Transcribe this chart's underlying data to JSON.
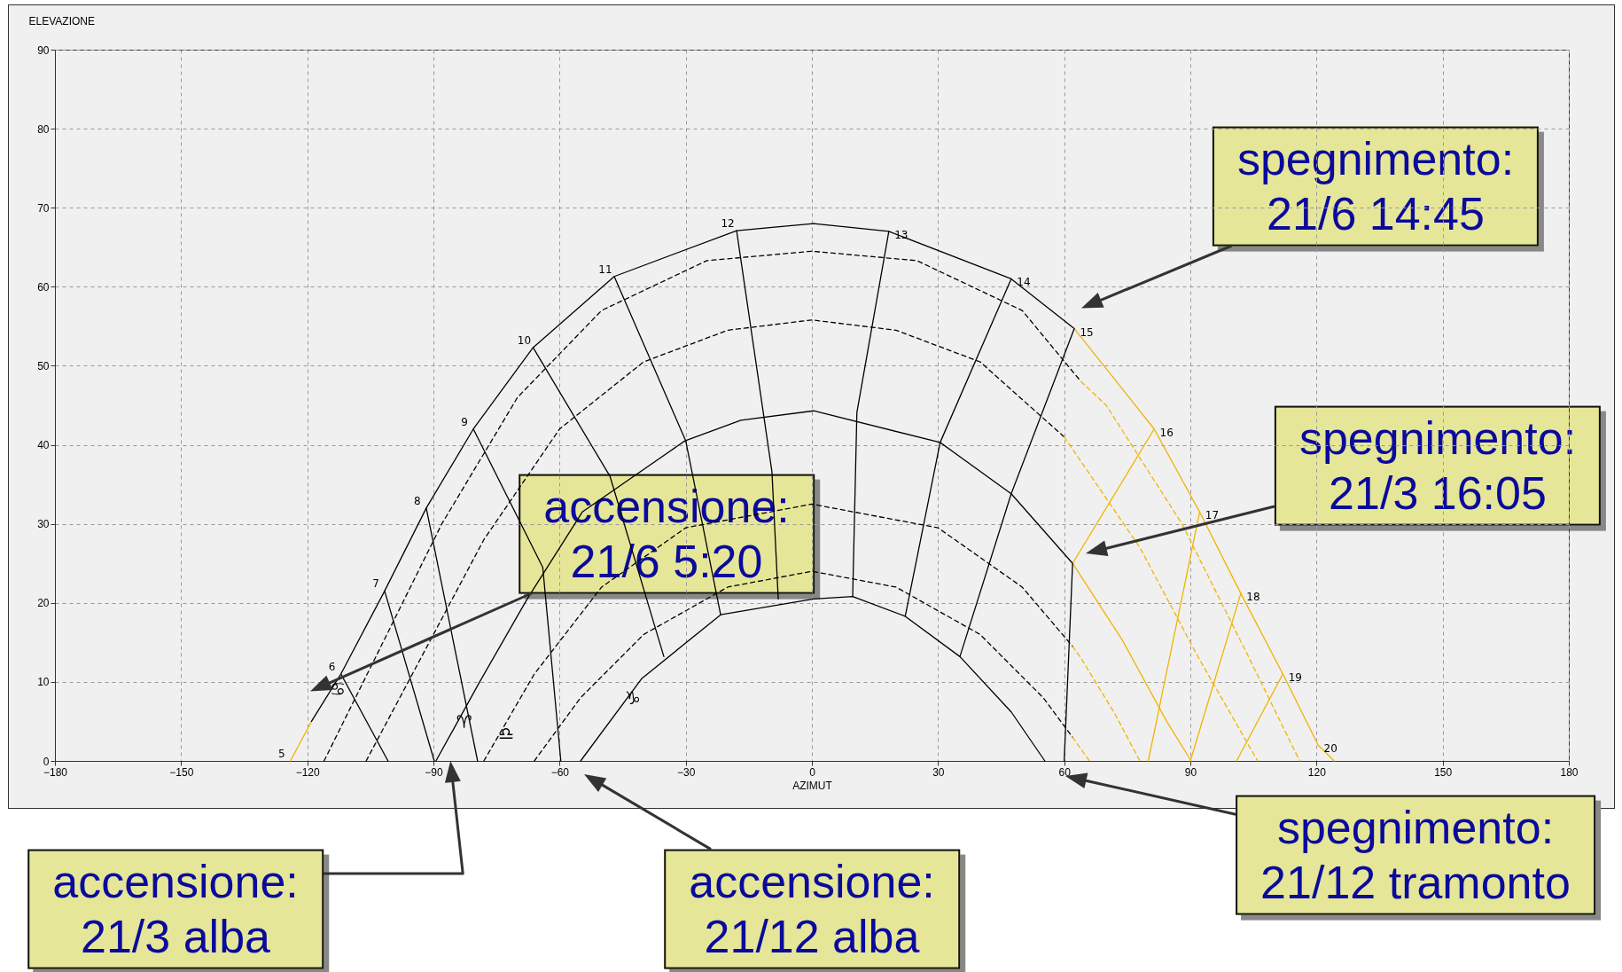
{
  "chart_data": {
    "type": "line",
    "xlabel": "AZIMUT",
    "ylabel": "ELEVAZIONE",
    "xlim": [
      -180,
      180
    ],
    "ylim": [
      0,
      90
    ],
    "xticks": [
      -180,
      -150,
      -120,
      -90,
      -60,
      -30,
      0,
      30,
      60,
      90,
      120,
      150,
      180
    ],
    "yticks": [
      0,
      10,
      20,
      30,
      40,
      50,
      60,
      70,
      80,
      90
    ],
    "grid": true,
    "series": [
      {
        "color": "#f0b400",
        "line_style": "solid",
        "x": [
          -124,
          -119
        ],
        "values": [
          0,
          5
        ]
      },
      {
        "color": "#000000",
        "line_style": "solid",
        "x": [
          -119,
          -112,
          -101.6,
          -91.7,
          -80.5,
          -66.3,
          -47,
          -17.9,
          0.4,
          18.3,
          47.4,
          62.4
        ],
        "values": [
          5,
          11,
          21.5,
          32,
          42,
          52.3,
          61.3,
          67.1,
          68,
          67,
          61,
          54.7
        ]
      },
      {
        "color": "#f0b400",
        "line_style": "solid",
        "x": [
          62.4,
          81.4,
          92.2,
          102,
          112,
          120.4,
          124.2
        ],
        "values": [
          54.7,
          42,
          31.5,
          21.2,
          11,
          2,
          0
        ]
      },
      {
        "color": "#000000",
        "line_style": "solid",
        "x": [
          -89.4,
          -79,
          -67.7,
          -54.6,
          -30.2,
          -16.9,
          0.4,
          30.5,
          47.4,
          62
        ],
        "values": [
          0,
          10,
          20.5,
          31.5,
          40.5,
          43.1,
          44.3,
          40.3,
          33.8,
          25
        ]
      },
      {
        "color": "#f0b400",
        "line_style": "solid",
        "x": [
          62,
          73.8,
          84.5,
          90.2
        ],
        "values": [
          25,
          15.3,
          4.9,
          0
        ]
      },
      {
        "color": "#000000",
        "line_style": "solid",
        "x": [
          -55,
          -40.5,
          -21.7,
          0.4,
          9.7,
          22.2,
          35.2,
          47.4,
          55.4
        ],
        "values": [
          0,
          10.4,
          18.5,
          20.5,
          20.8,
          18.3,
          13.2,
          6.2,
          0
        ]
      },
      {
        "color": "#000000",
        "line_style": "dashed",
        "x": [
          -116,
          -102,
          -88,
          -70,
          -50,
          -25,
          0,
          25,
          50,
          64
        ],
        "values": [
          0,
          15,
          30,
          46,
          57,
          63.3,
          64.5,
          63.3,
          57,
          48
        ]
      },
      {
        "color": "#f0b400",
        "line_style": "dashed",
        "x": [
          64,
          70,
          88,
          104,
          116
        ],
        "values": [
          48,
          45,
          30,
          13,
          0
        ]
      },
      {
        "color": "#000000",
        "line_style": "dashed",
        "x": [
          -106,
          -92,
          -78,
          -60,
          -40,
          -20,
          0,
          20,
          40,
          60
        ],
        "values": [
          0,
          14,
          28,
          42,
          50.5,
          54.5,
          55.8,
          54.5,
          50.5,
          41
        ]
      },
      {
        "color": "#f0b400",
        "line_style": "dashed",
        "x": [
          60,
          78,
          92,
          106
        ],
        "values": [
          41,
          27,
          13,
          0
        ]
      },
      {
        "color": "#000000",
        "line_style": "dashed",
        "x": [
          -78,
          -66,
          -50,
          -30,
          0,
          30,
          50,
          62
        ],
        "values": [
          0,
          11,
          22,
          29.5,
          32.5,
          29.5,
          22,
          14.5
        ]
      },
      {
        "color": "#f0b400",
        "line_style": "dashed",
        "x": [
          62,
          64,
          72,
          78
        ],
        "values": [
          14.5,
          13,
          6,
          0
        ]
      },
      {
        "color": "#000000",
        "line_style": "dashed",
        "x": [
          -66,
          -55,
          -40,
          -20,
          0,
          20,
          40,
          55,
          62
        ],
        "values": [
          0,
          8,
          16,
          22,
          24,
          22,
          16,
          8,
          3
        ]
      },
      {
        "color": "#f0b400",
        "line_style": "dashed",
        "x": [
          62,
          66
        ],
        "values": [
          3,
          0
        ]
      },
      {
        "color": "#000000",
        "line_style": "solid",
        "x": [
          -112,
          -100.8
        ],
        "values": [
          11,
          0
        ]
      },
      {
        "color": "#000000",
        "line_style": "solid",
        "x": [
          -101.6,
          -89.8
        ],
        "values": [
          21.5,
          0
        ]
      },
      {
        "color": "#000000",
        "line_style": "solid",
        "x": [
          -91.7,
          -79.5
        ],
        "values": [
          32,
          0
        ]
      },
      {
        "color": "#000000",
        "line_style": "solid",
        "x": [
          -80.5,
          -64,
          -59.7
        ],
        "values": [
          42,
          24.5,
          0
        ]
      },
      {
        "color": "#000000",
        "line_style": "solid",
        "x": [
          -66.3,
          -48,
          -35.2
        ],
        "values": [
          52.3,
          36,
          13.2
        ]
      },
      {
        "color": "#000000",
        "line_style": "solid",
        "x": [
          -47,
          -30,
          -21.7
        ],
        "values": [
          61.3,
          40.5,
          18.5
        ]
      },
      {
        "color": "#000000",
        "line_style": "solid",
        "x": [
          -17.9,
          -9.5,
          -8
        ],
        "values": [
          67.1,
          36.6,
          20.5
        ]
      },
      {
        "color": "#000000",
        "line_style": "solid",
        "x": [
          18.3,
          10.7,
          9.7
        ],
        "values": [
          67,
          44.1,
          20.8
        ]
      },
      {
        "color": "#000000",
        "line_style": "solid",
        "x": [
          47.4,
          30.5,
          22.2
        ],
        "values": [
          61,
          40.3,
          18.3
        ]
      },
      {
        "color": "#000000",
        "line_style": "solid",
        "x": [
          62.4,
          47.4,
          35.2
        ],
        "values": [
          54.7,
          33.8,
          13.2
        ]
      },
      {
        "color": "#f0b400",
        "line_style": "solid",
        "x": [
          81.4,
          62
        ],
        "values": [
          42,
          25
        ]
      },
      {
        "color": "#000000",
        "line_style": "solid",
        "x": [
          62,
          60
        ],
        "values": [
          25,
          0
        ]
      },
      {
        "color": "#f0b400",
        "line_style": "solid",
        "x": [
          92.2,
          80
        ],
        "values": [
          31.5,
          0
        ]
      },
      {
        "color": "#f0b400",
        "line_style": "solid",
        "x": [
          102,
          90
        ],
        "values": [
          21.2,
          0
        ]
      },
      {
        "color": "#f0b400",
        "line_style": "solid",
        "x": [
          112,
          101
        ],
        "values": [
          11,
          0
        ]
      }
    ],
    "annotations": [
      {
        "text": "5",
        "x": -124,
        "y": 0
      },
      {
        "text": "6",
        "x": -112,
        "y": 11
      },
      {
        "text": "7",
        "x": -101.6,
        "y": 21.5
      },
      {
        "text": "8",
        "x": -91.7,
        "y": 32
      },
      {
        "text": "9",
        "x": -80.5,
        "y": 42
      },
      {
        "text": "10",
        "x": -66.3,
        "y": 52.3
      },
      {
        "text": "11",
        "x": -47,
        "y": 61.3
      },
      {
        "text": "12",
        "x": -17.9,
        "y": 67.1
      },
      {
        "text": "13",
        "x": 18.3,
        "y": 67
      },
      {
        "text": "14",
        "x": 47.4,
        "y": 61
      },
      {
        "text": "15",
        "x": 62.4,
        "y": 54.7
      },
      {
        "text": "16",
        "x": 81.4,
        "y": 42
      },
      {
        "text": "17",
        "x": 92.2,
        "y": 31.5
      },
      {
        "text": "18",
        "x": 102,
        "y": 21.2
      },
      {
        "text": "19",
        "x": 112,
        "y": 11
      },
      {
        "text": "20",
        "x": 120.4,
        "y": 2
      },
      {
        "text": "♋",
        "x": -114.9,
        "y": 8.5
      },
      {
        "text": "♈",
        "x": -84.8,
        "y": 4.4
      },
      {
        "text": "♎",
        "x": -74.8,
        "y": 2.9
      },
      {
        "text": "♑",
        "x": -44.7,
        "y": 7.4
      },
      "spegnimento:\n21/6 14:45",
      "spegnimento:\n21/3 16:05",
      "accensione:\n21/6 5:20",
      "accensione:\n21/3 alba",
      "accensione:\n21/12 alba",
      "spegnimento:\n21/12 tramonto"
    ]
  }
}
